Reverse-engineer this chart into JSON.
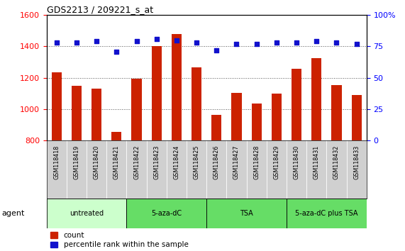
{
  "title": "GDS2213 / 209221_s_at",
  "samples": [
    "GSM118418",
    "GSM118419",
    "GSM118420",
    "GSM118421",
    "GSM118422",
    "GSM118423",
    "GSM118424",
    "GSM118425",
    "GSM118426",
    "GSM118427",
    "GSM118428",
    "GSM118429",
    "GSM118430",
    "GSM118431",
    "GSM118432",
    "GSM118433"
  ],
  "counts": [
    1237,
    1147,
    1133,
    855,
    1193,
    1403,
    1480,
    1268,
    966,
    1105,
    1035,
    1098,
    1258,
    1327,
    1155,
    1092
  ],
  "percentiles": [
    78,
    78,
    79,
    71,
    79,
    81,
    80,
    78,
    72,
    77,
    77,
    78,
    78,
    79,
    78,
    77
  ],
  "bar_color": "#cc2200",
  "dot_color": "#1111cc",
  "ylim_left": [
    800,
    1600
  ],
  "ylim_right": [
    0,
    100
  ],
  "yticks_left": [
    800,
    1000,
    1200,
    1400,
    1600
  ],
  "yticks_right": [
    0,
    25,
    50,
    75,
    100
  ],
  "group_data": [
    {
      "label": "untreated",
      "start": 0,
      "end": 4,
      "color": "#ccffcc"
    },
    {
      "label": "5-aza-dC",
      "start": 4,
      "end": 8,
      "color": "#66dd66"
    },
    {
      "label": "TSA",
      "start": 8,
      "end": 12,
      "color": "#66dd66"
    },
    {
      "label": "5-aza-dC plus TSA",
      "start": 12,
      "end": 16,
      "color": "#66dd66"
    }
  ],
  "agent_label": "agent",
  "legend_count_label": "count",
  "legend_pct_label": "percentile rank within the sample",
  "sample_bg_color": "#d0d0d0",
  "bar_width": 0.5
}
